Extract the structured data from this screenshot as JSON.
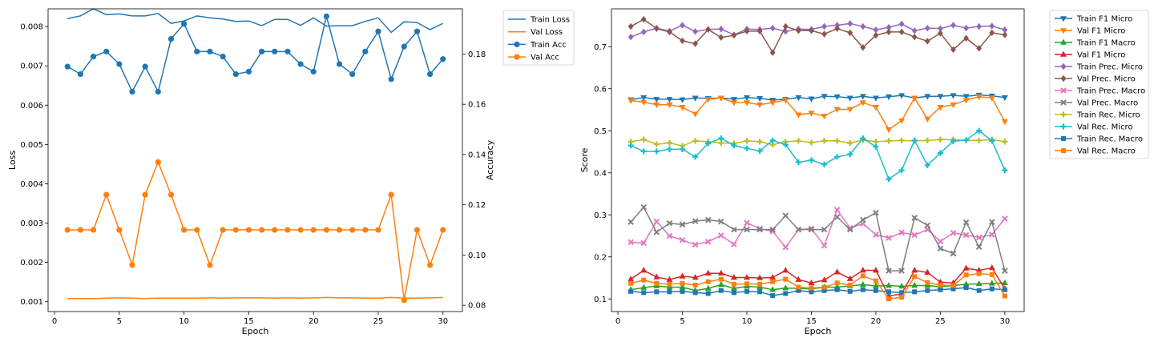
{
  "chart_data": [
    {
      "type": "line",
      "title": "",
      "xlabel": "Epoch",
      "ylabel_left": "Loss",
      "ylabel_right": "Accuracy",
      "x": [
        1,
        2,
        3,
        4,
        5,
        6,
        7,
        8,
        9,
        10,
        11,
        12,
        13,
        14,
        15,
        16,
        17,
        18,
        19,
        20,
        21,
        22,
        23,
        24,
        25,
        26,
        27,
        28,
        29,
        30
      ],
      "xlim": [
        -0.5,
        31.5
      ],
      "ylim_left": [
        0.00075,
        0.00845
      ],
      "ylim_right": [
        0.0775,
        0.198
      ],
      "xticks": [
        0,
        5,
        10,
        15,
        20,
        25,
        30
      ],
      "yticks_left": [
        0.001,
        0.002,
        0.003,
        0.004,
        0.005,
        0.006,
        0.007,
        0.008
      ],
      "yticks_right": [
        0.08,
        0.1,
        0.12,
        0.14,
        0.16,
        0.18
      ],
      "legend_position": "outside-right-top",
      "grid": false,
      "series": [
        {
          "name": "Train Loss",
          "axis": "left",
          "color": "#1f77b4",
          "marker": "none",
          "values": [
            0.0082,
            0.00827,
            0.00845,
            0.0083,
            0.00832,
            0.00827,
            0.00827,
            0.00833,
            0.00808,
            0.00814,
            0.00827,
            0.00822,
            0.00819,
            0.00813,
            0.00814,
            0.00802,
            0.00818,
            0.00818,
            0.00803,
            0.00822,
            0.00801,
            0.00802,
            0.00802,
            0.00813,
            0.00822,
            0.00785,
            0.00812,
            0.0081,
            0.00792,
            0.00808
          ]
        },
        {
          "name": "Val Loss",
          "axis": "left",
          "color": "#ff7f0e",
          "marker": "none",
          "values": [
            0.00108,
            0.00108,
            0.00108,
            0.00109,
            0.0011,
            0.00109,
            0.00108,
            0.00109,
            0.00109,
            0.00109,
            0.00109,
            0.0011,
            0.00109,
            0.0011,
            0.0011,
            0.0011,
            0.00109,
            0.0011,
            0.00109,
            0.0011,
            0.00111,
            0.0011,
            0.0011,
            0.00109,
            0.00109,
            0.00111,
            0.00109,
            0.00109,
            0.0011,
            0.00111
          ]
        },
        {
          "name": "Train Acc",
          "axis": "right",
          "color": "#1f77b4",
          "marker": "circle",
          "values": [
            0.175,
            0.172,
            0.179,
            0.181,
            0.176,
            0.165,
            0.175,
            0.165,
            0.186,
            0.192,
            0.181,
            0.181,
            0.179,
            0.172,
            0.173,
            0.181,
            0.181,
            0.181,
            0.176,
            0.173,
            0.195,
            0.176,
            0.172,
            0.181,
            0.189,
            0.17,
            0.183,
            0.189,
            0.172,
            0.178
          ]
        },
        {
          "name": "Val Acc",
          "axis": "right",
          "color": "#ff7f0e",
          "marker": "circle",
          "values": [
            0.11,
            0.11,
            0.11,
            0.124,
            0.11,
            0.096,
            0.124,
            0.137,
            0.124,
            0.11,
            0.11,
            0.096,
            0.11,
            0.11,
            0.11,
            0.11,
            0.11,
            0.11,
            0.11,
            0.11,
            0.11,
            0.11,
            0.11,
            0.11,
            0.11,
            0.124,
            0.082,
            0.11,
            0.096,
            0.11
          ]
        }
      ]
    },
    {
      "type": "line",
      "title": "",
      "xlabel": "Epoch",
      "ylabel": "Score",
      "x": [
        1,
        2,
        3,
        4,
        5,
        6,
        7,
        8,
        9,
        10,
        11,
        12,
        13,
        14,
        15,
        16,
        17,
        18,
        19,
        20,
        21,
        22,
        23,
        24,
        25,
        26,
        27,
        28,
        29,
        30
      ],
      "xlim": [
        -0.5,
        31.5
      ],
      "ylim": [
        0.07,
        0.79
      ],
      "xticks": [
        0,
        5,
        10,
        15,
        20,
        25,
        30
      ],
      "yticks": [
        0.1,
        0.2,
        0.3,
        0.4,
        0.5,
        0.6,
        0.7
      ],
      "legend_position": "outside-right-top",
      "grid": false,
      "series": [
        {
          "name": "Train F1 Micro",
          "color": "#1f77b4",
          "marker": "triangle_down",
          "values": [
            0.574,
            0.579,
            0.575,
            0.575,
            0.574,
            0.578,
            0.577,
            0.578,
            0.575,
            0.579,
            0.577,
            0.573,
            0.575,
            0.579,
            0.576,
            0.582,
            0.581,
            0.578,
            0.582,
            0.578,
            0.581,
            0.584,
            0.578,
            0.582,
            0.582,
            0.584,
            0.582,
            0.585,
            0.583,
            0.579
          ]
        },
        {
          "name": "Val F1 Micro",
          "color": "#ff7f0e",
          "marker": "triangle_down",
          "values": [
            0.572,
            0.568,
            0.562,
            0.562,
            0.556,
            0.54,
            0.575,
            0.578,
            0.567,
            0.567,
            0.562,
            0.567,
            0.573,
            0.538,
            0.542,
            0.535,
            0.551,
            0.551,
            0.567,
            0.556,
            0.503,
            0.524,
            0.578,
            0.528,
            0.556,
            0.562,
            0.573,
            0.581,
            0.578,
            0.522
          ]
        },
        {
          "name": "Train F1 Macro",
          "color": "#2ca02c",
          "marker": "triangle_up",
          "values": [
            0.122,
            0.127,
            0.131,
            0.128,
            0.128,
            0.12,
            0.125,
            0.134,
            0.125,
            0.13,
            0.128,
            0.122,
            0.126,
            0.125,
            0.124,
            0.128,
            0.128,
            0.131,
            0.134,
            0.131,
            0.132,
            0.13,
            0.132,
            0.132,
            0.129,
            0.132,
            0.135,
            0.136,
            0.137,
            0.138
          ]
        },
        {
          "name": "Val F1 Micro",
          "color": "#d62728",
          "marker": "triangle_up",
          "values": [
            0.147,
            0.168,
            0.152,
            0.146,
            0.154,
            0.151,
            0.161,
            0.161,
            0.151,
            0.151,
            0.15,
            0.151,
            0.168,
            0.146,
            0.138,
            0.145,
            0.164,
            0.148,
            0.168,
            0.168,
            0.107,
            0.112,
            0.168,
            0.163,
            0.14,
            0.138,
            0.173,
            0.168,
            0.174,
            0.124
          ]
        },
        {
          "name": "Train Prec. Micro",
          "color": "#9467bd",
          "marker": "diamond",
          "values": [
            0.723,
            0.735,
            0.744,
            0.737,
            0.751,
            0.736,
            0.741,
            0.742,
            0.728,
            0.742,
            0.741,
            0.744,
            0.736,
            0.742,
            0.741,
            0.748,
            0.751,
            0.755,
            0.748,
            0.74,
            0.746,
            0.754,
            0.738,
            0.744,
            0.743,
            0.751,
            0.744,
            0.748,
            0.749,
            0.74
          ]
        },
        {
          "name": "Val Prec. Micro",
          "color": "#8c564b",
          "marker": "diamond",
          "values": [
            0.748,
            0.765,
            0.743,
            0.735,
            0.714,
            0.707,
            0.741,
            0.722,
            0.727,
            0.737,
            0.737,
            0.686,
            0.748,
            0.738,
            0.738,
            0.73,
            0.743,
            0.733,
            0.698,
            0.727,
            0.735,
            0.735,
            0.723,
            0.713,
            0.732,
            0.693,
            0.72,
            0.696,
            0.733,
            0.728
          ]
        },
        {
          "name": "Train Prec. Macro",
          "color": "#e377c2",
          "marker": "x",
          "values": [
            0.235,
            0.233,
            0.284,
            0.25,
            0.24,
            0.229,
            0.236,
            0.251,
            0.23,
            0.281,
            0.267,
            0.261,
            0.223,
            0.265,
            0.267,
            0.227,
            0.312,
            0.269,
            0.279,
            0.253,
            0.245,
            0.258,
            0.252,
            0.265,
            0.237,
            0.257,
            0.252,
            0.246,
            0.253,
            0.291
          ]
        },
        {
          "name": "Val Prec. Macro",
          "color": "#7f7f7f",
          "marker": "x",
          "values": [
            0.283,
            0.318,
            0.259,
            0.28,
            0.277,
            0.285,
            0.288,
            0.284,
            0.265,
            0.265,
            0.265,
            0.265,
            0.298,
            0.265,
            0.265,
            0.265,
            0.295,
            0.265,
            0.288,
            0.305,
            0.167,
            0.167,
            0.293,
            0.275,
            0.22,
            0.208,
            0.282,
            0.224,
            0.283,
            0.167
          ]
        },
        {
          "name": "Train Rec. Micro",
          "color": "#bcbd22",
          "marker": "plus",
          "values": [
            0.474,
            0.479,
            0.468,
            0.471,
            0.464,
            0.476,
            0.474,
            0.471,
            0.47,
            0.476,
            0.474,
            0.467,
            0.474,
            0.476,
            0.472,
            0.476,
            0.476,
            0.471,
            0.478,
            0.474,
            0.476,
            0.477,
            0.476,
            0.477,
            0.479,
            0.479,
            0.477,
            0.477,
            0.479,
            0.474
          ]
        },
        {
          "name": "Val Rec. Micro",
          "color": "#17becf",
          "marker": "plus",
          "values": [
            0.465,
            0.451,
            0.451,
            0.456,
            0.456,
            0.438,
            0.47,
            0.482,
            0.465,
            0.458,
            0.452,
            0.477,
            0.467,
            0.425,
            0.43,
            0.42,
            0.438,
            0.444,
            0.482,
            0.462,
            0.385,
            0.406,
            0.477,
            0.418,
            0.447,
            0.475,
            0.478,
            0.5,
            0.476,
            0.406
          ]
        },
        {
          "name": "Train Rec. Macro",
          "color": "#1f77b4",
          "marker": "square",
          "values": [
            0.118,
            0.115,
            0.117,
            0.117,
            0.118,
            0.115,
            0.113,
            0.12,
            0.115,
            0.118,
            0.117,
            0.108,
            0.113,
            0.12,
            0.117,
            0.12,
            0.122,
            0.118,
            0.122,
            0.12,
            0.117,
            0.115,
            0.117,
            0.12,
            0.122,
            0.124,
            0.127,
            0.12,
            0.124,
            0.122
          ]
        },
        {
          "name": "Val Rec. Macro",
          "color": "#ff7f0e",
          "marker": "square",
          "values": [
            0.137,
            0.145,
            0.137,
            0.135,
            0.137,
            0.133,
            0.141,
            0.147,
            0.135,
            0.136,
            0.135,
            0.141,
            0.147,
            0.128,
            0.126,
            0.128,
            0.138,
            0.133,
            0.155,
            0.143,
            0.1,
            0.104,
            0.153,
            0.139,
            0.133,
            0.132,
            0.157,
            0.16,
            0.158,
            0.107
          ]
        }
      ]
    }
  ]
}
